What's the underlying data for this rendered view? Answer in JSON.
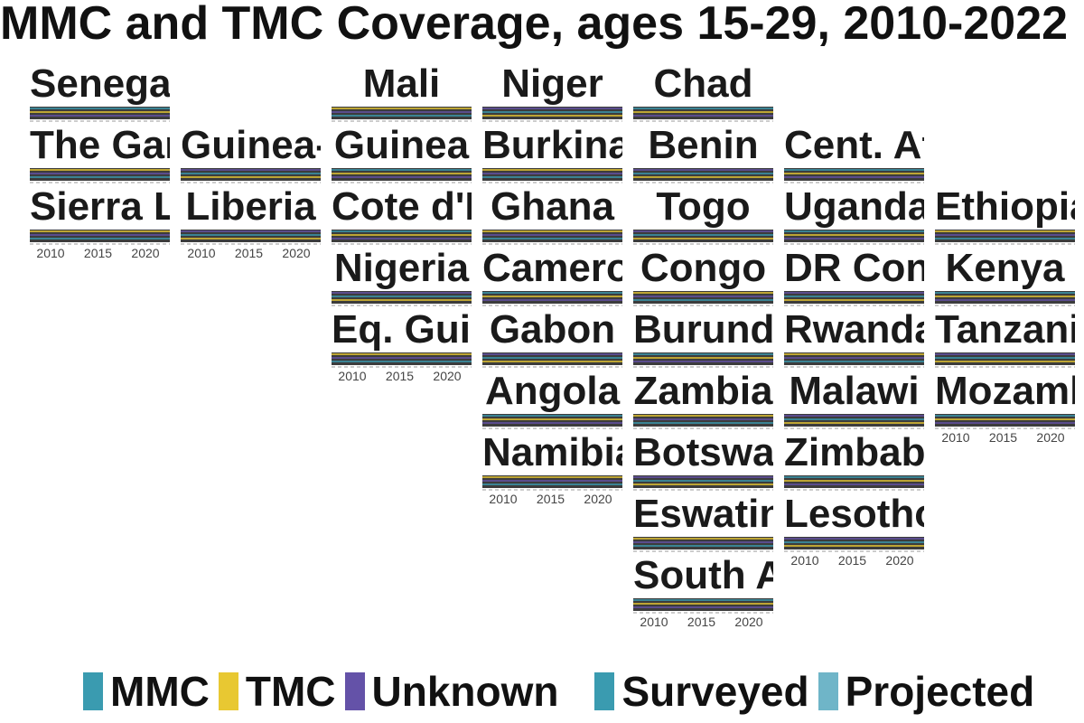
{
  "title": "MMC and TMC Coverage, ages 15-29, 2010-2022",
  "chart_data": {
    "type": "area",
    "layout": "geofacet",
    "x_ticks": [
      2010,
      2015,
      2020
    ],
    "xlim": [
      2008,
      2022
    ],
    "ylim": [
      0,
      100
    ],
    "facets": [
      {
        "name": "Senegal",
        "row": 0,
        "col": 0
      },
      {
        "name": "Mali",
        "row": 0,
        "col": 2
      },
      {
        "name": "Niger",
        "row": 0,
        "col": 3
      },
      {
        "name": "Chad",
        "row": 0,
        "col": 4
      },
      {
        "name": "The Gambia",
        "row": 1,
        "col": 0
      },
      {
        "name": "Guinea-Bissau",
        "row": 1,
        "col": 1
      },
      {
        "name": "Guinea",
        "row": 1,
        "col": 2
      },
      {
        "name": "Burkina Faso",
        "row": 1,
        "col": 3
      },
      {
        "name": "Benin",
        "row": 1,
        "col": 4
      },
      {
        "name": "Cent. Af. Rep.",
        "row": 1,
        "col": 5
      },
      {
        "name": "Sierra Leone",
        "row": 2,
        "col": 0
      },
      {
        "name": "Liberia",
        "row": 2,
        "col": 1
      },
      {
        "name": "Cote d'Ivoire",
        "row": 2,
        "col": 2
      },
      {
        "name": "Ghana",
        "row": 2,
        "col": 3
      },
      {
        "name": "Togo",
        "row": 2,
        "col": 4
      },
      {
        "name": "Uganda",
        "row": 2,
        "col": 5
      },
      {
        "name": "Ethiopia",
        "row": 2,
        "col": 6
      },
      {
        "name": "Nigeria",
        "row": 3,
        "col": 2
      },
      {
        "name": "Cameroon",
        "row": 3,
        "col": 3
      },
      {
        "name": "Congo",
        "row": 3,
        "col": 4
      },
      {
        "name": "DR Congo",
        "row": 3,
        "col": 5
      },
      {
        "name": "Kenya",
        "row": 3,
        "col": 6
      },
      {
        "name": "Eq. Guinea",
        "row": 4,
        "col": 2
      },
      {
        "name": "Gabon",
        "row": 4,
        "col": 3
      },
      {
        "name": "Burundi",
        "row": 4,
        "col": 4
      },
      {
        "name": "Rwanda",
        "row": 4,
        "col": 5
      },
      {
        "name": "Tanzania",
        "row": 4,
        "col": 6
      },
      {
        "name": "Angola",
        "row": 5,
        "col": 3
      },
      {
        "name": "Zambia",
        "row": 5,
        "col": 4
      },
      {
        "name": "Malawi",
        "row": 5,
        "col": 5
      },
      {
        "name": "Mozambique",
        "row": 5,
        "col": 6
      },
      {
        "name": "Namibia",
        "row": 6,
        "col": 3
      },
      {
        "name": "Botswana",
        "row": 6,
        "col": 4
      },
      {
        "name": "Zimbabwe",
        "row": 6,
        "col": 5
      },
      {
        "name": "Eswatini",
        "row": 7,
        "col": 4
      },
      {
        "name": "Lesotho",
        "row": 7,
        "col": 5
      },
      {
        "name": "South Africa",
        "row": 8,
        "col": 4
      }
    ],
    "axis_below": [
      {
        "row": 2,
        "col": 0
      },
      {
        "row": 2,
        "col": 1
      },
      {
        "row": 4,
        "col": 2
      },
      {
        "row": 5,
        "col": 6
      },
      {
        "row": 6,
        "col": 3
      },
      {
        "row": 7,
        "col": 5
      },
      {
        "row": 8,
        "col": 4
      }
    ],
    "legend": {
      "placement": "bottom",
      "type_items": [
        {
          "label": "MMC",
          "color": "#3a9bb0"
        },
        {
          "label": "TMC",
          "color": "#e8c832"
        },
        {
          "label": "Unknown",
          "color": "#6452a8"
        }
      ],
      "status_items": [
        {
          "label": "Surveyed",
          "color": "#3a9bb0"
        },
        {
          "label": "Projected",
          "color": "#6fb5c8"
        }
      ]
    }
  }
}
